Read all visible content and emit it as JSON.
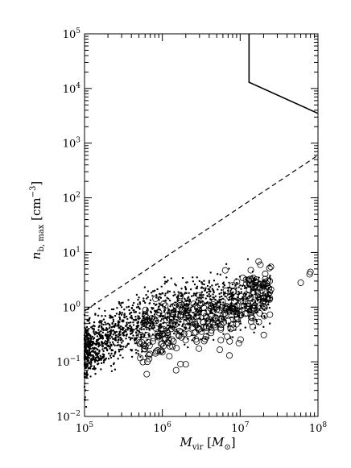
{
  "chart_data": {
    "type": "scatter",
    "title": "",
    "xlabel": "M_vir [M_⊙]",
    "ylabel": "n_b, max [cm^-3]",
    "xlabel_parts": {
      "main": "M",
      "sub": "vir",
      "unit_open": " [",
      "unit_main": "M",
      "unit_sub": "⊙",
      "unit_close": "]"
    },
    "ylabel_parts": {
      "main": "n",
      "sub": "b, max",
      "unit_open": " [",
      "unit_main": "cm",
      "unit_sup": "−3",
      "unit_close": "]"
    },
    "xscale": "log",
    "yscale": "log",
    "xlim": [
      100000,
      100000000
    ],
    "ylim": [
      0.01,
      100000
    ],
    "grid": false,
    "legend": "none",
    "x_ticks": [
      {
        "value": 100000,
        "base": "10",
        "exp": "5"
      },
      {
        "value": 1000000,
        "base": "10",
        "exp": "6"
      },
      {
        "value": 10000000,
        "base": "10",
        "exp": "7"
      },
      {
        "value": 100000000,
        "base": "10",
        "exp": "8"
      }
    ],
    "y_ticks": [
      {
        "value": 0.01,
        "base": "10",
        "exp": "−2"
      },
      {
        "value": 0.1,
        "base": "10",
        "exp": "−1"
      },
      {
        "value": 1,
        "base": "10",
        "exp": "0"
      },
      {
        "value": 10,
        "base": "10",
        "exp": "1"
      },
      {
        "value": 100,
        "base": "10",
        "exp": "2"
      },
      {
        "value": 1000,
        "base": "10",
        "exp": "3"
      },
      {
        "value": 10000,
        "base": "10",
        "exp": "4"
      },
      {
        "value": 100000,
        "base": "10",
        "exp": "5"
      }
    ],
    "series": [
      {
        "style": "points",
        "marker": "dot",
        "description": "dense cloud of small filled points, roughly 1500 systems; log n rises with log M",
        "trend": {
          "x_range": [
            100000,
            25000000
          ],
          "y_at_1e5": 0.15,
          "y_at_1e6": 0.8,
          "y_at_2e7": 1.6,
          "log_scatter_dex": 0.25,
          "count": 1500
        },
        "values": [
          [
            100000,
            0.035
          ],
          [
            102000,
            0.02
          ],
          [
            105000,
            0.015
          ],
          [
            108000,
            0.3
          ],
          [
            110000,
            0.28
          ],
          [
            115000,
            0.6
          ],
          [
            120000,
            0.09
          ],
          [
            150000,
            0.7
          ],
          [
            200000,
            0.5
          ],
          [
            300000,
            1.0
          ],
          [
            500000,
            1.5
          ],
          [
            600000,
            1.2
          ],
          [
            800000,
            2.0
          ],
          [
            1000000,
            1.8
          ],
          [
            1500000,
            2.5
          ],
          [
            2000000,
            2.2
          ],
          [
            3000000,
            3.0
          ],
          [
            4000000,
            2.8
          ],
          [
            6000000,
            2.7
          ],
          [
            8000000,
            2.6
          ],
          [
            10000000,
            2.5
          ],
          [
            15000000,
            3.0
          ],
          [
            20000000,
            3.0
          ],
          [
            24000000,
            3.5
          ]
        ]
      },
      {
        "style": "points",
        "marker": "open-circle",
        "description": "open circles, roughly 300 systems at higher mass",
        "trend": {
          "x_range": [
            500000,
            25000000
          ],
          "y_at_1e6": 0.35,
          "y_at_1e7": 1.0,
          "log_scatter_dex": 0.28,
          "count": 300
        },
        "values": [
          [
            600000,
            0.17
          ],
          [
            900000,
            0.3
          ],
          [
            1000000,
            0.15
          ],
          [
            1200000,
            0.22
          ],
          [
            1500000,
            0.07
          ],
          [
            2000000,
            0.09
          ],
          [
            3000000,
            0.4
          ],
          [
            4000000,
            0.6
          ],
          [
            5000000,
            0.9
          ],
          [
            8000000,
            0.95
          ],
          [
            12000000,
            1.7
          ],
          [
            14000000,
            2.5
          ],
          [
            16000000,
            3.2
          ],
          [
            20000000,
            2.4
          ],
          [
            24000000,
            3.0
          ],
          [
            60000000,
            2.8
          ],
          [
            78000000,
            4.0
          ],
          [
            80000000,
            4.4
          ]
        ]
      },
      {
        "style": "dashed",
        "description": "dashed reference line",
        "values": [
          [
            100000,
            0.85
          ],
          [
            100000000,
            600
          ]
        ]
      },
      {
        "style": "solid",
        "description": "solid boundary line",
        "values": [
          [
            13000000,
            100000
          ],
          [
            13000000,
            13000
          ],
          [
            100000000,
            3500
          ]
        ]
      }
    ]
  }
}
